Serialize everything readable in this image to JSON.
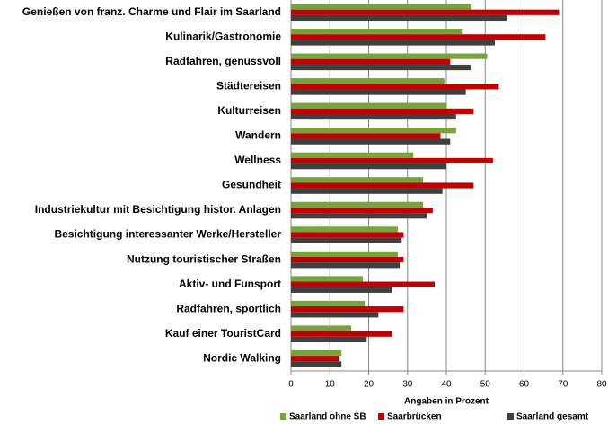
{
  "chart_data": {
    "type": "hbar",
    "categories": [
      "Genießen von franz. Charme und Flair im Saarland",
      "Kulinarik/Gastronomie",
      "Radfahren, genussvoll",
      "Städtereisen",
      "Kulturreisen",
      "Wandern",
      "Wellness",
      "Gesundheit",
      "Industriekultur mit Besichtigung histor. Anlagen",
      "Besichtigung interessanter Werke/Hersteller",
      "Nutzung touristischer Straßen",
      "Aktiv- und Funsport",
      "Radfahren, sportlich",
      "Kauf einer TouristCard",
      "Nordic Walking"
    ],
    "series": [
      {
        "name": "Saarland ohne SB",
        "color": "#77a33b",
        "values": [
          46.5,
          44,
          50.5,
          39.5,
          40,
          42.5,
          31.5,
          34,
          34,
          27.5,
          27.5,
          18.5,
          19,
          15.5,
          13
        ]
      },
      {
        "name": "Saarbrücken",
        "color": "#c00000",
        "values": [
          69,
          65.5,
          41,
          53.5,
          47,
          38.5,
          52,
          47,
          36.5,
          29,
          29,
          37,
          29,
          26,
          12.5
        ]
      },
      {
        "name": "Saarland gesamt",
        "color": "#3f3f3f",
        "values": [
          55.5,
          52.5,
          46.5,
          45,
          42.5,
          41,
          40,
          39,
          35,
          28.5,
          28,
          26,
          22.5,
          19.5,
          13
        ]
      }
    ],
    "x_label": "Angaben in Prozent",
    "xlim": [
      0,
      80
    ],
    "xticks": [
      0,
      10,
      20,
      30,
      40,
      50,
      60,
      70,
      80
    ],
    "grid": true,
    "legend": "bottom"
  }
}
